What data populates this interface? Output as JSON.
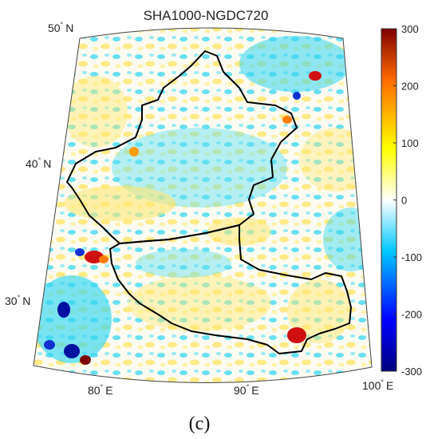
{
  "map": {
    "title": "SHA1000-NGDC720",
    "caption": "(c)",
    "lat_labels": [
      {
        "deg": "50",
        "hemi": "N"
      },
      {
        "deg": "40",
        "hemi": "N"
      },
      {
        "deg": "30",
        "hemi": "N"
      }
    ],
    "lon_labels": [
      {
        "deg": "80",
        "hemi": "E"
      },
      {
        "deg": "90",
        "hemi": "E"
      },
      {
        "deg": "100",
        "hemi": "E"
      }
    ]
  },
  "colorbar": {
    "ticks": [
      "300",
      "200",
      "100",
      "0",
      "-100",
      "-200",
      "-300"
    ],
    "range": [
      -300,
      300
    ],
    "colormap": [
      "#00007f",
      "#0000ff",
      "#00c8ff",
      "#ffffff",
      "#ffff00",
      "#ff6a00",
      "#7f0000"
    ]
  },
  "colors": {
    "background_field": "#fffdf0",
    "cyan": "#33d6f0",
    "yellow": "#ffe873",
    "boundary": "#000000"
  }
}
